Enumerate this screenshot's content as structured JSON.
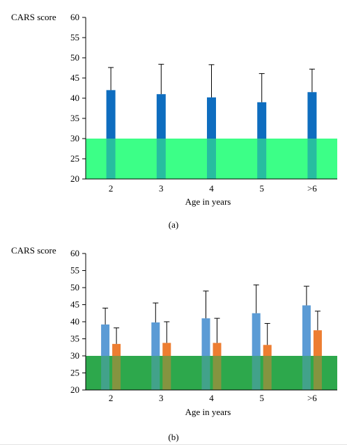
{
  "chart_data": [
    {
      "panel": "(a)",
      "type": "bar",
      "ylabel": "CARS score",
      "xlabel": "Age in years",
      "categories": [
        "2",
        "3",
        "4",
        "5",
        ">6"
      ],
      "series": [
        {
          "values": [
            42.0,
            41.0,
            40.2,
            39.0,
            41.5
          ],
          "errors": [
            5.6,
            7.4,
            8.1,
            7.1,
            5.7
          ],
          "color": "#0E6DBF"
        }
      ],
      "ylim": [
        20,
        60
      ],
      "yticks": [
        20,
        25,
        30,
        35,
        40,
        45,
        50,
        55,
        60
      ],
      "band": {
        "from": 20,
        "to": 30,
        "color": "#3DFF87"
      },
      "grid": false,
      "legend": "none"
    },
    {
      "panel": "(b)",
      "type": "bar",
      "ylabel": "CARS score",
      "xlabel": "Age in years",
      "categories": [
        "2",
        "3",
        "4",
        "5",
        ">6"
      ],
      "series": [
        {
          "values": [
            39.2,
            39.8,
            41.0,
            42.5,
            44.8
          ],
          "errors": [
            4.8,
            5.7,
            8.0,
            8.3,
            5.6
          ],
          "color": "#5B9BD5"
        },
        {
          "values": [
            33.5,
            33.8,
            33.8,
            33.2,
            37.5
          ],
          "errors": [
            4.7,
            6.2,
            7.2,
            6.3,
            5.6
          ],
          "color": "#ED7D31"
        }
      ],
      "ylim": [
        20,
        60
      ],
      "yticks": [
        20,
        25,
        30,
        35,
        40,
        45,
        50,
        55,
        60
      ],
      "band": {
        "from": 20,
        "to": 30,
        "color": "#2EA84C"
      },
      "grid": false,
      "legend": "none"
    }
  ]
}
